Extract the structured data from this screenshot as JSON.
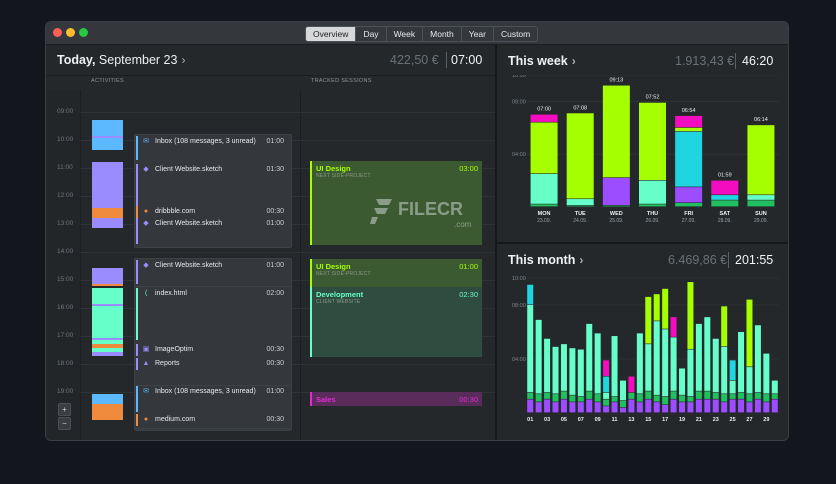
{
  "window": {
    "tabs": [
      {
        "label": "Overview",
        "active": true
      },
      {
        "label": "Day",
        "active": false
      },
      {
        "label": "Week",
        "active": false
      },
      {
        "label": "Month",
        "active": false
      },
      {
        "label": "Year",
        "active": false
      },
      {
        "label": "Custom",
        "active": false
      }
    ]
  },
  "today": {
    "title_bold": "Today,",
    "title_rest": " September 23",
    "chevron": "›",
    "amount": "422,50 €",
    "time": "07:00",
    "col_activities": "ACTIVITIES",
    "col_sessions": "TRACKED SESSIONS",
    "hours": [
      "09:00",
      "10:00",
      "11:00",
      "12:00",
      "13:00",
      "14:00",
      "15:00",
      "16:00",
      "17:00",
      "18:00",
      "19:00"
    ],
    "activities": [
      {
        "name": "Inbox (108 messages, 3 unread)",
        "duration": "01:00",
        "icon": "mail-icon",
        "glyph": "✉",
        "color": "#5cb8ff"
      },
      {
        "name": "Client Website.sketch",
        "duration": "01:30",
        "icon": "sketch-icon",
        "glyph": "◆",
        "color": "#9a8cff"
      },
      {
        "name": "dribbble.com",
        "duration": "00:30",
        "icon": "chrome-icon",
        "glyph": "●",
        "color": "#f08a3c"
      },
      {
        "name": "Client Website.sketch",
        "duration": "01:00",
        "icon": "sketch-icon",
        "glyph": "◆",
        "color": "#9a8cff"
      },
      {
        "name": "Client Website.sketch",
        "duration": "01:00",
        "icon": "sketch-icon",
        "glyph": "◆",
        "color": "#9a8cff"
      },
      {
        "name": "index.html",
        "duration": "02:00",
        "icon": "vscode-icon",
        "glyph": "⟨",
        "color": "#66ffc9"
      },
      {
        "name": "ImageOptim",
        "duration": "00:30",
        "icon": "imageoptim-icon",
        "glyph": "▣",
        "color": "#9a8cff"
      },
      {
        "name": "Reports",
        "duration": "00:30",
        "icon": "reports-icon",
        "glyph": "▲",
        "color": "#9a8cff"
      },
      {
        "name": "Inbox (108 messages, 3 unread)",
        "duration": "01:00",
        "icon": "mail-icon",
        "glyph": "✉",
        "color": "#5cb8ff"
      },
      {
        "name": "medium.com",
        "duration": "00:30",
        "icon": "chrome-icon",
        "glyph": "●",
        "color": "#f08a3c"
      }
    ],
    "sessions": [
      {
        "title": "UI Design",
        "subtitle": "NEXT SIDE-PROJECT",
        "duration": "03:00",
        "color": "#a6ff00"
      },
      {
        "title": "UI Design",
        "subtitle": "NEXT SIDE-PROJECT",
        "duration": "01:00",
        "color": "#a6ff00"
      },
      {
        "title": "Development",
        "subtitle": "CLIENT WEBSITE",
        "duration": "02:30",
        "color": "#66ffc9"
      },
      {
        "title": "Sales",
        "subtitle": "",
        "duration": "00:30",
        "color": "#e02bd1"
      }
    ],
    "zoom_in": "+",
    "zoom_out": "−"
  },
  "watermark": {
    "text": "FILECR",
    "sub": ".com"
  },
  "week": {
    "title": "This week",
    "chevron": "›",
    "amount": "1.913,43 €",
    "time": "46:20"
  },
  "month": {
    "title": "This month",
    "chevron": "›",
    "amount": "6.469,86 €",
    "time": "201:55"
  },
  "colors": {
    "lime": "#a6ff00",
    "mint": "#66ffc9",
    "magenta": "#f40cc0",
    "purple": "#9b4dff",
    "cyan": "#1fd6e0",
    "green": "#20c060",
    "orange": "#f08a3c",
    "blue": "#5cb8ff",
    "lavender": "#9a8cff"
  },
  "chart_data": [
    {
      "type": "bar",
      "title": "This week",
      "stacked": true,
      "categories": [
        "MON",
        "TUE",
        "WED",
        "THU",
        "FRI",
        "SAT",
        "SUN"
      ],
      "dates": [
        "23.09.",
        "24.09.",
        "25.09.",
        "26.09.",
        "27.09.",
        "28.09.",
        "29.09."
      ],
      "totals_label": [
        "07:00",
        "07:08",
        "09:13",
        "07:52",
        "06:54",
        "01:59",
        "06:14"
      ],
      "ylim": [
        0,
        10
      ],
      "yticks": [
        "04:00",
        "08:00",
        "10:00"
      ],
      "series": [
        {
          "color": "#20c060",
          "values": [
            0.2,
            0.1,
            0.1,
            0.2,
            0.3,
            0.5,
            0.5
          ]
        },
        {
          "color": "#66ffc9",
          "values": [
            2.3,
            0.5,
            0,
            1.8,
            0,
            0,
            0.4
          ]
        },
        {
          "color": "#9b4dff",
          "values": [
            0,
            0,
            2.1,
            0,
            1.2,
            0,
            0
          ]
        },
        {
          "color": "#1fd6e0",
          "values": [
            0,
            0,
            0,
            0,
            4.2,
            0.4,
            0
          ]
        },
        {
          "color": "#a6ff00",
          "values": [
            3.9,
            6.5,
            7.0,
            5.9,
            0.3,
            0,
            5.3
          ]
        },
        {
          "color": "#f40cc0",
          "values": [
            0.6,
            0,
            0,
            0,
            0.9,
            1.1,
            0
          ]
        }
      ]
    },
    {
      "type": "bar",
      "title": "This month",
      "stacked": true,
      "categories": [
        "01",
        "02",
        "03",
        "04",
        "05",
        "06",
        "07",
        "08",
        "09",
        "10",
        "11",
        "12",
        "13",
        "14",
        "15",
        "16",
        "17",
        "18",
        "19",
        "20",
        "21",
        "22",
        "23",
        "24",
        "25",
        "26",
        "27",
        "28",
        "29",
        "30"
      ],
      "tick_labels": [
        "01",
        "03",
        "05",
        "07",
        "09",
        "11",
        "13",
        "15",
        "17",
        "19",
        "21",
        "23",
        "25",
        "27",
        "29"
      ],
      "ylim": [
        0,
        10
      ],
      "yticks": [
        "04:00",
        "08:00",
        "10:00"
      ],
      "series": [
        {
          "color": "#9b4dff",
          "values": [
            1,
            0.8,
            1,
            0.8,
            1,
            0.8,
            0.8,
            1,
            0.8,
            0.5,
            0.8,
            0.4,
            1,
            0.8,
            1,
            0.8,
            0.6,
            1,
            0.8,
            0.8,
            1,
            1,
            1,
            0.8,
            1,
            1,
            0.8,
            1,
            0.8,
            1
          ]
        },
        {
          "color": "#20c060",
          "values": [
            0.5,
            0.6,
            0.5,
            0.6,
            0.6,
            0.5,
            0.4,
            0.6,
            0.6,
            0.5,
            0.4,
            0.5,
            0.5,
            0.6,
            0.6,
            0.5,
            0.6,
            0.6,
            0.5,
            0.4,
            0.6,
            0.6,
            0.5,
            0.6,
            0.4,
            0.5,
            0.6,
            0.5,
            0.6,
            0.4
          ]
        },
        {
          "color": "#66ffc9",
          "values": [
            6.5,
            5.5,
            4,
            3.5,
            3.5,
            3.5,
            3.5,
            5,
            4.5,
            0.5,
            4.5,
            1.5,
            0,
            4.5,
            3.5,
            5.5,
            5,
            4,
            2,
            3.5,
            5,
            5.5,
            4,
            3.5,
            1,
            4.5,
            2,
            5,
            3,
            1
          ]
        },
        {
          "color": "#a6ff00",
          "values": [
            0,
            0,
            0,
            0,
            0,
            0,
            0,
            0,
            0,
            0,
            0,
            0,
            0,
            0,
            3.5,
            2,
            3,
            0,
            0,
            5,
            0,
            0,
            0,
            3,
            0,
            0,
            5,
            0,
            0,
            0
          ]
        },
        {
          "color": "#1fd6e0",
          "values": [
            1.5,
            0,
            0,
            0,
            0,
            0,
            0,
            0,
            0,
            1.2,
            0,
            0,
            0,
            0,
            0,
            0,
            0,
            0,
            0,
            0,
            0,
            0,
            0,
            0,
            1.5,
            0,
            0,
            0,
            0,
            0
          ]
        },
        {
          "color": "#f40cc0",
          "values": [
            0,
            0,
            0,
            0,
            0,
            0,
            0,
            0,
            0,
            1.2,
            0,
            0,
            1.2,
            0,
            0,
            0,
            0,
            1.5,
            0,
            0,
            0,
            0,
            0,
            0,
            0,
            0,
            0,
            0,
            0,
            0
          ]
        }
      ]
    }
  ]
}
